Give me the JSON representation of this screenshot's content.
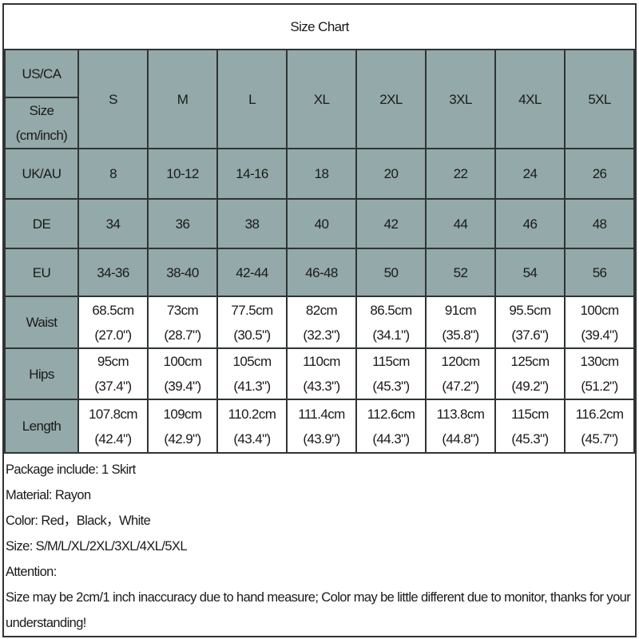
{
  "title": "Size Chart",
  "sizes": [
    "S",
    "M",
    "L",
    "XL",
    "2XL",
    "3XL",
    "4XL",
    "5XL"
  ],
  "labels": {
    "us": "US/CA",
    "size": "Size (cm/inch)",
    "uk": "UK/AU",
    "de": "DE",
    "eu": "EU",
    "waist": "Waist",
    "hips": "Hips",
    "length": "Length"
  },
  "uk": [
    "8",
    "10-12",
    "14-16",
    "18",
    "20",
    "22",
    "24",
    "26"
  ],
  "de": [
    "34",
    "36",
    "38",
    "40",
    "42",
    "44",
    "46",
    "48"
  ],
  "eu": [
    "34-36",
    "38-40",
    "42-44",
    "46-48",
    "50",
    "52",
    "54",
    "56"
  ],
  "waist": [
    [
      "68.5cm",
      "(27.0\")"
    ],
    [
      "73cm",
      "(28.7\")"
    ],
    [
      "77.5cm",
      "(30.5\")"
    ],
    [
      "82cm",
      "(32.3\")"
    ],
    [
      "86.5cm",
      "(34.1\")"
    ],
    [
      "91cm",
      "(35.8\")"
    ],
    [
      "95.5cm",
      "(37.6\")"
    ],
    [
      "100cm",
      "(39.4\")"
    ]
  ],
  "hips": [
    [
      "95cm",
      "(37.4\")"
    ],
    [
      "100cm",
      "(39.4\")"
    ],
    [
      "105cm",
      "(41.3\")"
    ],
    [
      "110cm",
      "(43.3\")"
    ],
    [
      "115cm",
      "(45.3\")"
    ],
    [
      "120cm",
      "(47.2\")"
    ],
    [
      "125cm",
      "(49.2\")"
    ],
    [
      "130cm",
      "(51.2\")"
    ]
  ],
  "length": [
    [
      "107.8cm",
      "(42.4\")"
    ],
    [
      "109cm",
      "(42.9\")"
    ],
    [
      "110.2cm",
      "(43.4\")"
    ],
    [
      "111.4cm",
      "(43.9\")"
    ],
    [
      "112.6cm",
      "(44.3\")"
    ],
    [
      "113.8cm",
      "(44.8\")"
    ],
    [
      "115cm",
      "(45.3\")"
    ],
    [
      "116.2cm",
      "(45.7\")"
    ]
  ],
  "notes": [
    "Package include: 1 Skirt",
    "Material:  Rayon",
    "Color: Red，Black，White",
    "Size: S/M/L/XL/2XL/3XL/4XL/5XL",
    "Attention:",
    "Size may be 2cm/1 inch inaccuracy due to hand measure; Color may be little different due to monitor, thanks for your understanding!"
  ],
  "colors": {
    "header": "#94a9a9",
    "border": "#2e3434"
  }
}
